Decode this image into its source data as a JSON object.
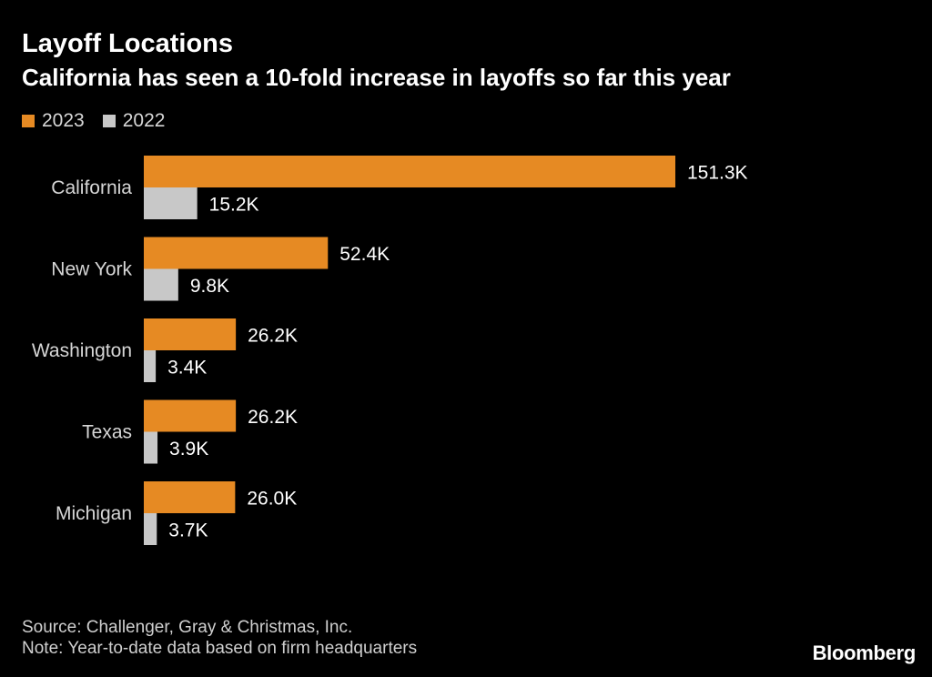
{
  "chart_data": {
    "type": "bar",
    "orientation": "horizontal",
    "title": "Layoff Locations",
    "subtitle": "California has seen a 10-fold increase in layoffs so far this year",
    "categories": [
      "California",
      "New York",
      "Washington",
      "Texas",
      "Michigan"
    ],
    "series": [
      {
        "name": "2023",
        "color": "#e68a23",
        "values": [
          151.3,
          52.4,
          26.2,
          26.2,
          26.0
        ],
        "labels": [
          "151.3K",
          "52.4K",
          "26.2K",
          "26.2K",
          "26.0K"
        ]
      },
      {
        "name": "2022",
        "color": "#c8c8c8",
        "values": [
          15.2,
          9.8,
          3.4,
          3.9,
          3.7
        ],
        "labels": [
          "15.2K",
          "9.8K",
          "3.4K",
          "3.9K",
          "3.7K"
        ]
      }
    ],
    "xlim": [
      0,
      151.3
    ],
    "grid": false,
    "legend": "top-left",
    "xlabel": "",
    "ylabel": ""
  },
  "footer": {
    "source": "Source: Challenger, Gray & Christmas, Inc.",
    "note": "Note: Year-to-date data based on firm headquarters",
    "brand": "Bloomberg"
  }
}
